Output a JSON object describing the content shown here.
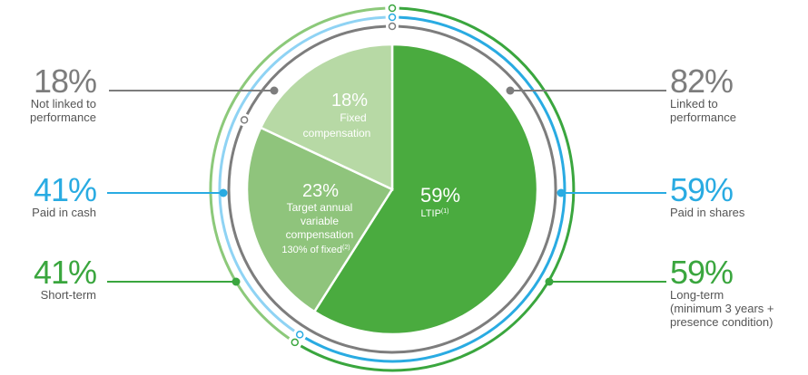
{
  "colors": {
    "gray": "#7d7d7d",
    "blue": "#29abe2",
    "lightblue": "#8fd3f4",
    "green": "#3aa63e",
    "lightgreen": "#8cc97a",
    "pie_long": "#4aab3f",
    "pie_mid": "#8fc47c",
    "pie_fixed": "#b7d9a5"
  },
  "chart_data": {
    "type": "pie",
    "slices": [
      {
        "id": "ltip",
        "value": 59,
        "pct_label": "59%",
        "label": "LTIP",
        "sup": "(1)"
      },
      {
        "id": "variable",
        "value": 23,
        "pct_label": "23%",
        "label": "Target annual variable compensation",
        "line1": "Target annual",
        "line2": "variable",
        "line3": "compensation",
        "line4": "130% of fixed",
        "sup": "(2)"
      },
      {
        "id": "fixed",
        "value": 18,
        "pct_label": "18%",
        "label": "Fixed compensation",
        "line1": "Fixed",
        "line2": "compensation"
      }
    ],
    "annotations": {
      "left": [
        {
          "pct": "18%",
          "label": "Not linked to\nperformance"
        },
        {
          "pct": "41%",
          "label": "Paid in cash"
        },
        {
          "pct": "41%",
          "label": "Short-term"
        }
      ],
      "right": [
        {
          "pct": "82%",
          "label": "Linked to\nperformance"
        },
        {
          "pct": "59%",
          "label": "Paid in shares"
        },
        {
          "pct": "59%",
          "label": "Long-term\n(minimum 3 years +\npresence condition)"
        }
      ]
    }
  }
}
